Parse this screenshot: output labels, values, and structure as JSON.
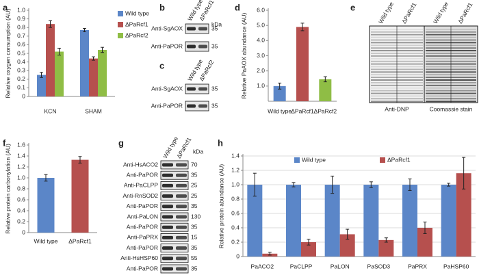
{
  "chart_data": [
    {
      "type": "bar",
      "panel": "a",
      "ylabel": "Relative oxygen consumption (AU)",
      "categories": [
        "KCN",
        "SHAM"
      ],
      "series": [
        {
          "name": "Wild type",
          "color": "#5b86c8",
          "values": [
            0.25,
            0.77
          ],
          "errors": [
            0.03,
            0.02
          ]
        },
        {
          "name": "ΔPaRcf1",
          "color": "#b6504e",
          "values": [
            0.84,
            0.44
          ],
          "errors": [
            0.04,
            0.02
          ]
        },
        {
          "name": "ΔPaRcf2",
          "color": "#8fbd45",
          "values": [
            0.52,
            0.54
          ],
          "errors": [
            0.04,
            0.03
          ]
        }
      ],
      "ylim": [
        0,
        1
      ],
      "yticks": [
        0,
        0.1,
        0.2,
        0.3,
        0.4,
        0.5,
        0.6,
        0.7,
        0.8,
        0.9,
        {
          "value": 1,
          "label": "1.0"
        }
      ],
      "grid": false,
      "legend": "right"
    },
    {
      "type": "bar",
      "panel": "d",
      "ylabel": "Relative PaAOX abundance (AU)",
      "categories": [
        "Wild type",
        "ΔPaRcf1",
        "ΔPaRcf2"
      ],
      "values": [
        1.0,
        4.9,
        1.45
      ],
      "errors": [
        0.2,
        0.25,
        0.17
      ],
      "colors": [
        "#5b86c8",
        "#b6504e",
        "#8fbd45"
      ],
      "ylim": [
        0,
        6
      ],
      "yticks": [
        {
          "value": 1,
          "label": "1.0"
        },
        {
          "value": 2,
          "label": "2.0"
        },
        {
          "value": 3,
          "label": "3.0"
        },
        {
          "value": 4,
          "label": "4.0"
        },
        {
          "value": 5,
          "label": "5.0"
        },
        {
          "value": 6,
          "label": "6.0"
        }
      ],
      "grid": false
    },
    {
      "type": "bar",
      "panel": "f",
      "ylabel": "Relative protein carbonylation (AU)",
      "categories": [
        "Wild type",
        "ΔPaRcf1"
      ],
      "values": [
        1.0,
        1.33
      ],
      "errors": [
        0.06,
        0.06
      ],
      "colors": [
        "#5b86c8",
        "#b6504e"
      ],
      "ylim": [
        0,
        1.6
      ],
      "yticks": [
        0,
        0.2,
        0.4,
        0.6,
        0.8,
        {
          "value": 1,
          "label": "1.0"
        },
        1.2,
        1.4,
        1.6
      ],
      "grid": false
    },
    {
      "type": "bar",
      "panel": "h",
      "ylabel": "Relative protein abundance (AU)",
      "categories": [
        "PaACO2",
        "PaCLPP",
        "PaLON",
        "PaSOD3",
        "PaPRX",
        "PaHSP60"
      ],
      "series": [
        {
          "name": "Wild type",
          "color": "#5b86c8",
          "values": [
            1,
            1,
            1,
            1,
            1,
            1
          ],
          "errors": [
            0.16,
            0.03,
            0.12,
            0.04,
            0.08,
            0.02
          ]
        },
        {
          "name": "ΔPaRcf1",
          "color": "#b6504e",
          "values": [
            0.04,
            0.2,
            0.31,
            0.23,
            0.4,
            1.16
          ],
          "errors": [
            0.02,
            0.04,
            0.07,
            0.03,
            0.08,
            0.22
          ]
        }
      ],
      "ylim": [
        0,
        1.4
      ],
      "yticks": [
        0,
        0.2,
        0.4,
        0.6,
        0.8,
        {
          "value": 1,
          "label": "1.0"
        },
        1.2,
        1.4
      ],
      "grid": true,
      "legend": "top"
    }
  ],
  "blots": {
    "b": {
      "label": "b",
      "lanes": [
        "Wild type",
        "ΔPaRcf1"
      ],
      "unit": "kDa",
      "rows": [
        {
          "antibody": "Anti-SgAOX",
          "kda": 35
        },
        {
          "antibody": "Anti-PaPOR",
          "kda": 35
        }
      ]
    },
    "c": {
      "label": "c",
      "lanes": [
        "Wild type",
        "ΔPaRcf2"
      ],
      "rows": [
        {
          "antibody": "Anti-SgAOX",
          "kda": 35
        },
        {
          "antibody": "Anti-PaPOR",
          "kda": 35
        }
      ]
    },
    "e": {
      "label": "e",
      "lanes": [
        "Wild type",
        "ΔPaRcf1",
        "Wild type",
        "ΔPaRcf1"
      ],
      "captions": [
        "Anti-DNP",
        "Coomassie stain"
      ]
    },
    "g": {
      "label": "g",
      "lanes": [
        "Wild type",
        "ΔPaRcf1"
      ],
      "unit": "kDa",
      "rows": [
        {
          "antibody": "Anti-HsACO2",
          "kda": 70
        },
        {
          "antibody": "Anti-PaPOR",
          "kda": 35
        },
        {
          "antibody": "Anti-PaCLPP",
          "kda": 25
        },
        {
          "antibody": "Anti-RnSOD2",
          "kda": 25
        },
        {
          "antibody": "Anti-PaPOR",
          "kda": 35
        },
        {
          "antibody": "Anti-PaLON",
          "kda": 130
        },
        {
          "antibody": "Anti-PaPOR",
          "kda": 35
        },
        {
          "antibody": "Anti-PaPRX",
          "kda": 15
        },
        {
          "antibody": "Anti-PaPOR",
          "kda": 35
        },
        {
          "antibody": "Anti-HsHSP60",
          "kda": 55
        },
        {
          "antibody": "Anti-PaPOR",
          "kda": 35
        }
      ]
    }
  }
}
